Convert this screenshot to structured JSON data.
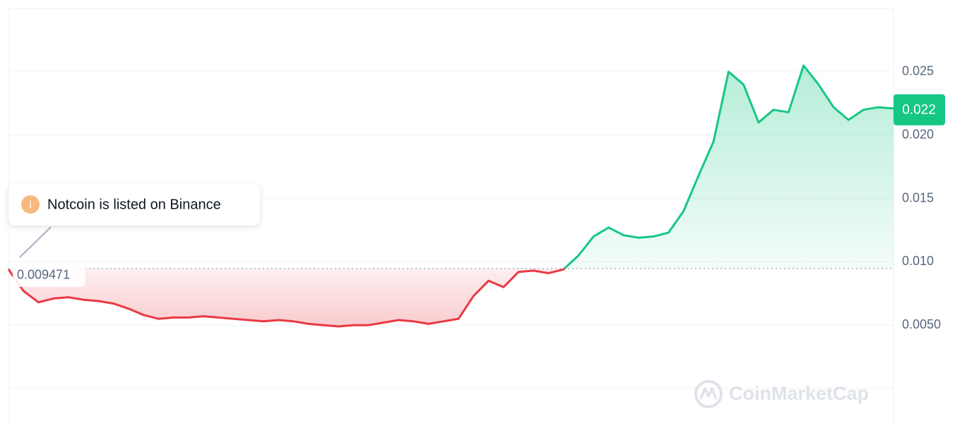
{
  "chart_data": {
    "type": "line",
    "annotation": "Notcoin is listed on Binance",
    "annotation_icon": "i",
    "baseline": 0.009471,
    "baseline_label": "0.009471",
    "current_price": 0.022,
    "current_price_label": "0.022",
    "watermark": "CoinMarketCap",
    "up_color": "#16c784",
    "down_color": "#ea3943",
    "grid": true,
    "ylim": [
      0,
      0.03
    ],
    "yticks": [
      {
        "value": 0.005,
        "label": "0.0050"
      },
      {
        "value": 0.01,
        "label": "0.010"
      },
      0.015,
      {
        "value": 0.02,
        "label": "0.020"
      },
      0.025
    ],
    "values": [
      0.0094,
      0.0077,
      0.0068,
      0.0071,
      0.0072,
      0.007,
      0.0069,
      0.0067,
      0.0063,
      0.0058,
      0.0055,
      0.0056,
      0.0056,
      0.0057,
      0.0056,
      0.0055,
      0.0054,
      0.0053,
      0.0054,
      0.0053,
      0.0051,
      0.005,
      0.0049,
      0.005,
      0.005,
      0.0052,
      0.0054,
      0.0053,
      0.0051,
      0.0053,
      0.0055,
      0.0073,
      0.0085,
      0.008,
      0.0092,
      0.0093,
      0.0091,
      0.0094,
      0.0105,
      0.012,
      0.0127,
      0.0121,
      0.0119,
      0.012,
      0.0123,
      0.014,
      0.0168,
      0.0195,
      0.025,
      0.024,
      0.021,
      0.022,
      0.0218,
      0.0255,
      0.024,
      0.0222,
      0.0212,
      0.022,
      0.0222,
      0.0221
    ]
  }
}
